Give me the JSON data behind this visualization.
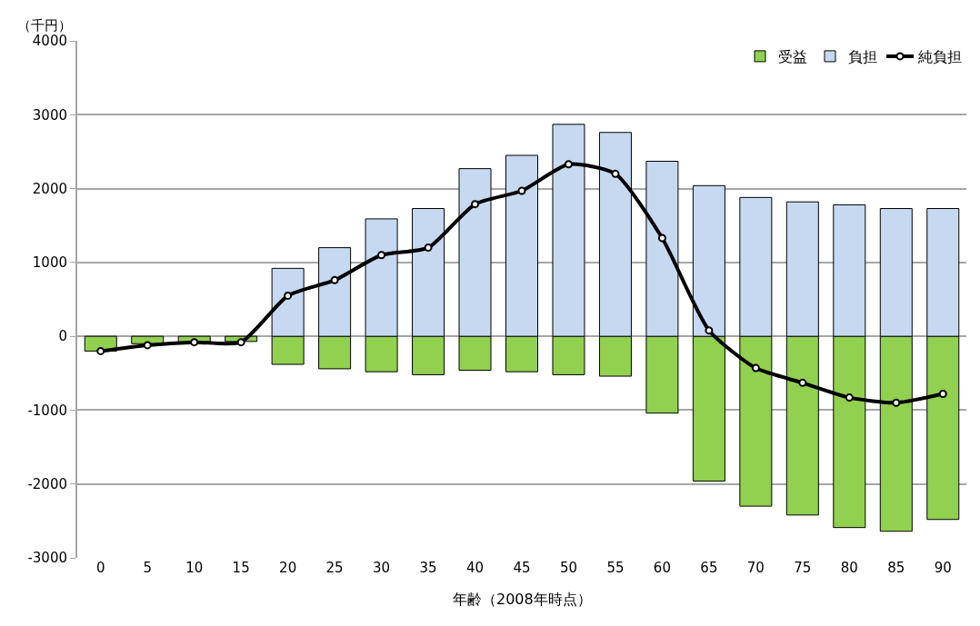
{
  "chart_data": {
    "type": "bar",
    "xlabel": "年齢（2008年時点）",
    "ylabel": "（千円）",
    "categories": [
      "0",
      "5",
      "10",
      "15",
      "20",
      "25",
      "30",
      "35",
      "40",
      "45",
      "50",
      "55",
      "60",
      "65",
      "70",
      "75",
      "80",
      "85",
      "90"
    ],
    "series": [
      {
        "name": "受益",
        "color": "#92d050",
        "values": [
          -200,
          -100,
          -80,
          -70,
          -380,
          -440,
          -480,
          -520,
          -460,
          -480,
          -520,
          -540,
          -1040,
          -1960,
          -2300,
          -2420,
          -2590,
          -2640,
          -2480
        ]
      },
      {
        "name": "負担",
        "color": "#c6d9f1",
        "values": [
          null,
          null,
          null,
          null,
          920,
          1200,
          1590,
          1730,
          2270,
          2450,
          2870,
          2760,
          2370,
          2040,
          1880,
          1820,
          1780,
          1730,
          1730
        ]
      },
      {
        "name": "純負担",
        "type": "line",
        "color": "#000000",
        "marker": "circle",
        "values": [
          -200,
          -120,
          -80,
          -80,
          550,
          760,
          1100,
          1200,
          1790,
          1970,
          2330,
          2200,
          1330,
          80,
          -430,
          -630,
          -830,
          -900,
          -780
        ]
      }
    ],
    "ylim": [
      -3000,
      4000
    ],
    "yticks": [
      -3000,
      -2000,
      -1000,
      0,
      1000,
      2000,
      3000,
      4000
    ],
    "grid": "y",
    "legend": "top right",
    "stacked": true
  }
}
